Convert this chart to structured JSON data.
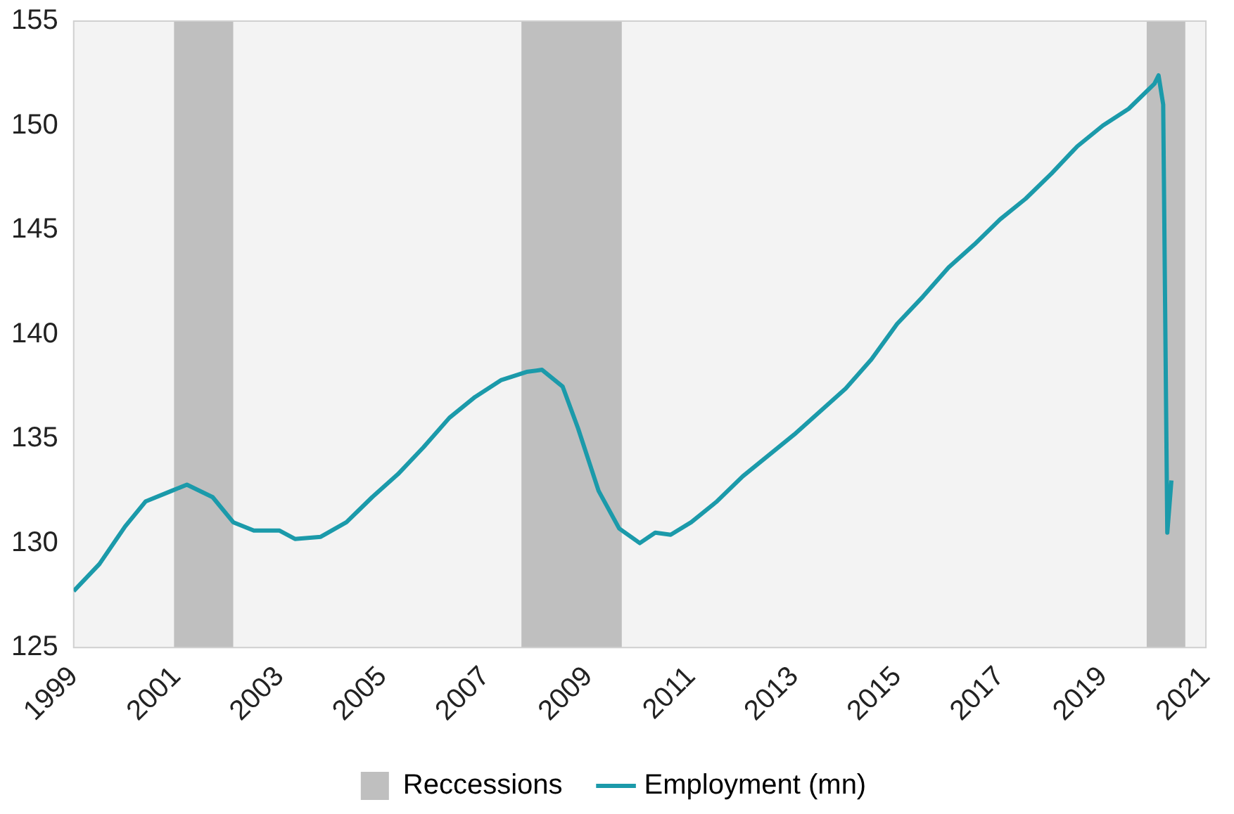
{
  "chart_data": {
    "type": "line",
    "x": [
      1999.0,
      1999.5,
      2000.0,
      2000.4,
      2000.9,
      2001.2,
      2001.7,
      2002.1,
      2002.5,
      2003.0,
      2003.3,
      2003.8,
      2004.3,
      2004.8,
      2005.3,
      2005.8,
      2006.3,
      2006.8,
      2007.3,
      2007.8,
      2008.1,
      2008.5,
      2008.8,
      2009.2,
      2009.6,
      2010.0,
      2010.3,
      2010.6,
      2011.0,
      2011.5,
      2012.0,
      2012.5,
      2013.0,
      2013.5,
      2014.0,
      2014.5,
      2015.0,
      2015.5,
      2016.0,
      2016.5,
      2017.0,
      2017.5,
      2018.0,
      2018.5,
      2019.0,
      2019.5,
      2020.0,
      2020.08,
      2020.17,
      2020.25,
      2020.33
    ],
    "series": [
      {
        "name": "Employment (mn)",
        "color": "#1b9aaa",
        "values": [
          127.7,
          129.0,
          130.8,
          132.0,
          132.5,
          132.8,
          132.2,
          131.0,
          130.6,
          130.6,
          130.2,
          130.3,
          131.0,
          132.2,
          133.3,
          134.6,
          136.0,
          137.0,
          137.8,
          138.2,
          138.3,
          137.5,
          135.5,
          132.5,
          130.7,
          130.0,
          130.5,
          130.4,
          131.0,
          132.0,
          133.2,
          134.2,
          135.2,
          136.3,
          137.4,
          138.8,
          140.5,
          141.8,
          143.2,
          144.3,
          145.5,
          146.5,
          147.7,
          149.0,
          150.0,
          150.8,
          152.0,
          152.4,
          151.0,
          130.5,
          133.0
        ]
      }
    ],
    "bands": [
      {
        "axis": "x",
        "from": 2000.95,
        "to": 2002.1,
        "label": "Reccessions",
        "color": "#bfbfbf"
      },
      {
        "axis": "x",
        "from": 2007.7,
        "to": 2009.65,
        "color": "#bfbfbf"
      },
      {
        "axis": "x",
        "from": 2019.85,
        "to": 2020.6,
        "color": "#bfbfbf"
      }
    ],
    "xlim": [
      1999,
      2021
    ],
    "xticks": [
      1999,
      2001,
      2003,
      2005,
      2007,
      2009,
      2011,
      2013,
      2015,
      2017,
      2019,
      2021
    ],
    "ylim": [
      125,
      155
    ],
    "yticks": [
      125,
      130,
      135,
      140,
      145,
      150,
      155
    ],
    "grid": false,
    "legend": "bottom"
  }
}
